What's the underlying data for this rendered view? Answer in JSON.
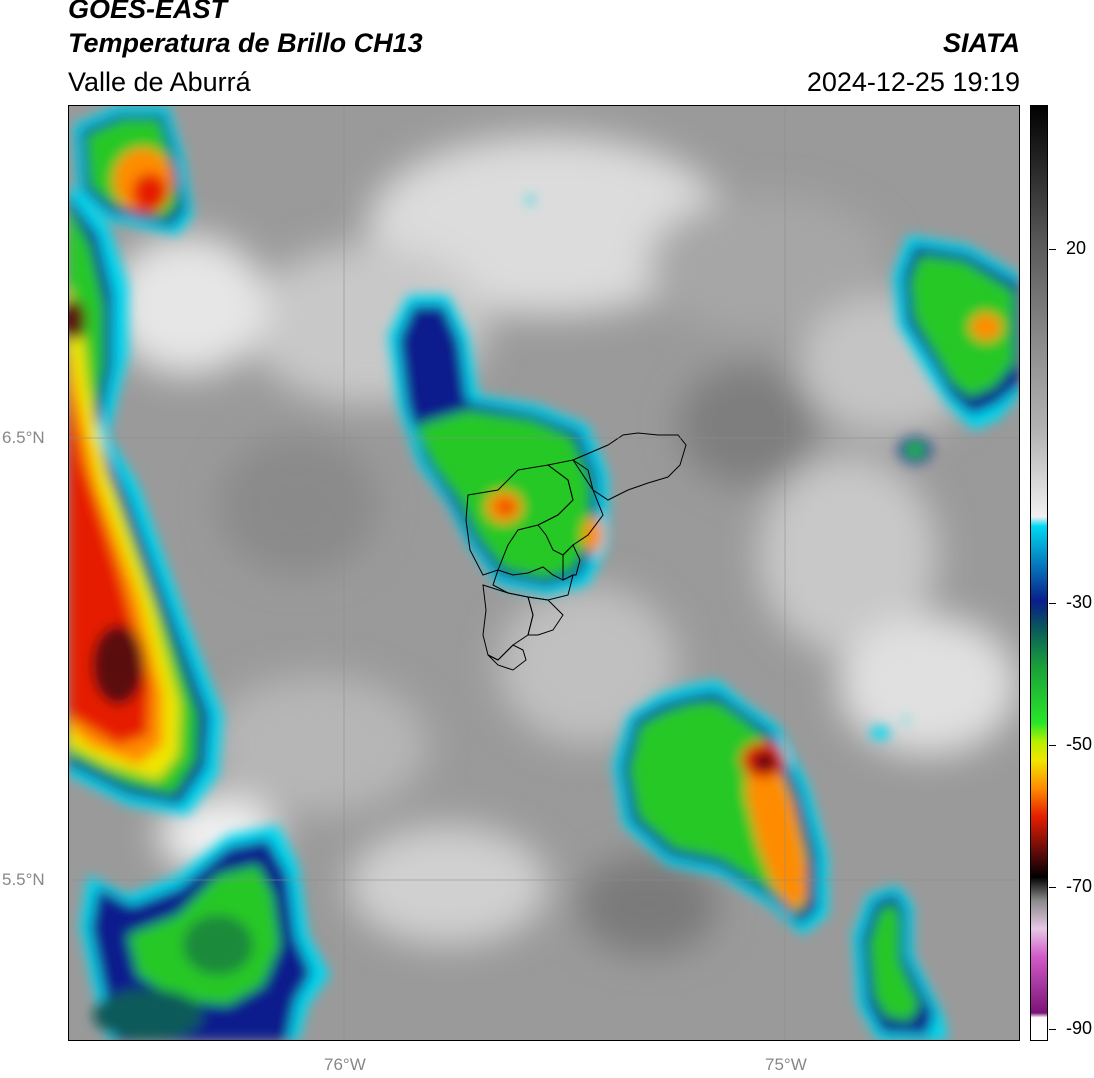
{
  "header": {
    "satellite": "GOES-EAST",
    "product": "Temperatura de Brillo CH13",
    "region": "Valle de Aburrá",
    "agency": "SIATA",
    "datetime": "2024-12-25 19:19"
  },
  "axes": {
    "lat_labels": [
      "6.5°N",
      "5.5°N"
    ],
    "lon_labels": [
      "76°W",
      "75°W"
    ]
  },
  "colorbar": {
    "tick_labels": [
      "20",
      "-30",
      "-50",
      "-70",
      "-90"
    ],
    "range": [
      -90,
      30
    ],
    "colors": {
      "warm_gray": "#8a8a8a",
      "cold_white": "#f0f0f0",
      "cyan": "#00d8f0",
      "navy": "#0a1e8c",
      "teal": "#0a5a5a",
      "green": "#28c828",
      "yellow": "#f0e600",
      "orange": "#ff8c00",
      "red": "#e61e00",
      "dark_red": "#5a0a0a",
      "black": "#000000",
      "magenta": "#d25ac8",
      "purple": "#7a1478"
    }
  }
}
